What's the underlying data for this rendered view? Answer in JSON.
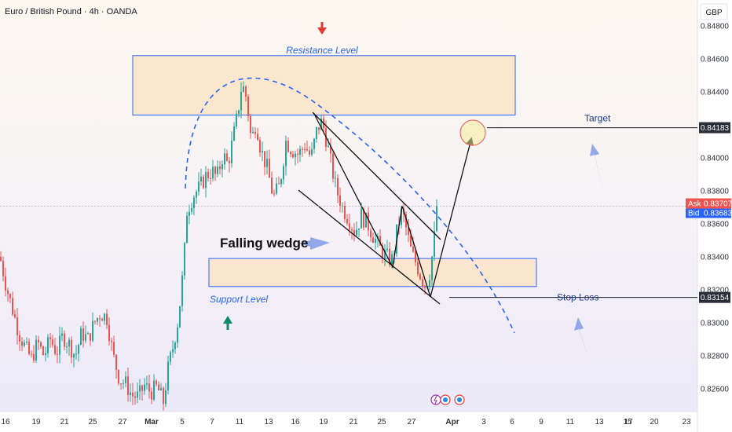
{
  "header": {
    "symbol_title": "Euro / British Pound · 4h · OANDA",
    "currency": "GBP"
  },
  "colors": {
    "up": "#26a69a",
    "down": "#ef5350",
    "zone_fill": "#fbe3c4",
    "zone_border": "#2962ff",
    "dash_curve": "#2962ff",
    "arrow_blue": "#7b96e6",
    "ask": "#ef5350",
    "bid": "#2962ff",
    "price_tag": "#2a2e39"
  },
  "chart_data": {
    "type": "candlestick",
    "title": "Euro / British Pound · 4h · OANDA",
    "ylim": [
      0.825,
      0.849
    ],
    "y_ticks": [
      "0.84800",
      "0.84600",
      "0.84400",
      "0.84200",
      "0.84000",
      "0.83800",
      "0.83600",
      "0.83400",
      "0.83200",
      "0.83000",
      "0.82800",
      "0.82600"
    ],
    "x_ticks": [
      "16",
      "19",
      "21",
      "25",
      "27",
      "Mar",
      "5",
      "7",
      "11",
      "13",
      "16",
      "19",
      "21",
      "25",
      "27",
      "Apr",
      "3",
      "6",
      "9",
      "11",
      "13",
      "15",
      "17",
      "20",
      "23"
    ],
    "x_ticks_bold": [
      "Mar",
      "Apr"
    ],
    "anchors": [
      [
        0,
        0.834
      ],
      [
        8,
        0.8322
      ],
      [
        16,
        0.8308
      ],
      [
        24,
        0.8294
      ],
      [
        32,
        0.8285
      ],
      [
        40,
        0.8278
      ],
      [
        48,
        0.8288
      ],
      [
        56,
        0.828
      ],
      [
        64,
        0.829
      ],
      [
        72,
        0.8282
      ],
      [
        80,
        0.8292
      ],
      [
        88,
        0.8287
      ],
      [
        96,
        0.828
      ],
      [
        104,
        0.8294
      ],
      [
        112,
        0.829
      ],
      [
        120,
        0.83
      ],
      [
        128,
        0.8306
      ],
      [
        136,
        0.8303
      ],
      [
        144,
        0.828
      ],
      [
        152,
        0.8266
      ],
      [
        160,
        0.8263
      ],
      [
        168,
        0.8256
      ],
      [
        176,
        0.8255
      ],
      [
        184,
        0.8262
      ],
      [
        192,
        0.8258
      ],
      [
        200,
        0.8261
      ],
      [
        208,
        0.8252
      ],
      [
        214,
        0.8272
      ],
      [
        220,
        0.8285
      ],
      [
        226,
        0.83
      ],
      [
        230,
        0.8316
      ],
      [
        234,
        0.8336
      ],
      [
        238,
        0.8368
      ],
      [
        246,
        0.8377
      ],
      [
        254,
        0.8382
      ],
      [
        262,
        0.8389
      ],
      [
        270,
        0.8392
      ],
      [
        276,
        0.8388
      ],
      [
        284,
        0.8402
      ],
      [
        290,
        0.8396
      ],
      [
        296,
        0.841
      ],
      [
        302,
        0.8425
      ],
      [
        308,
        0.8445
      ],
      [
        314,
        0.8436
      ],
      [
        320,
        0.841
      ],
      [
        326,
        0.8422
      ],
      [
        332,
        0.8405
      ],
      [
        340,
        0.8394
      ],
      [
        348,
        0.8376
      ],
      [
        356,
        0.8383
      ],
      [
        364,
        0.841
      ],
      [
        372,
        0.8405
      ],
      [
        380,
        0.8402
      ],
      [
        388,
        0.8408
      ],
      [
        396,
        0.84
      ],
      [
        404,
        0.8418
      ],
      [
        410,
        0.8422
      ],
      [
        416,
        0.841
      ],
      [
        422,
        0.8395
      ],
      [
        428,
        0.8381
      ],
      [
        436,
        0.837
      ],
      [
        444,
        0.8363
      ],
      [
        452,
        0.8355
      ],
      [
        460,
        0.8365
      ],
      [
        468,
        0.836
      ],
      [
        476,
        0.8352
      ],
      [
        484,
        0.8345
      ],
      [
        492,
        0.834
      ],
      [
        500,
        0.8338
      ],
      [
        506,
        0.8358
      ],
      [
        512,
        0.8368
      ],
      [
        518,
        0.8355
      ],
      [
        524,
        0.8342
      ],
      [
        530,
        0.8336
      ],
      [
        536,
        0.8328
      ],
      [
        542,
        0.8322
      ],
      [
        548,
        0.8332
      ],
      [
        553,
        0.8352
      ],
      [
        556,
        0.8371
      ]
    ],
    "resistance_zone": {
      "label": "Resistance Level",
      "y_low": 0.8426,
      "y_high": 0.8462
    },
    "support_zone": {
      "label": "Support Level",
      "y_low": 0.8322,
      "y_high": 0.8339
    },
    "price_lines": [
      {
        "label": "Target",
        "price": "0.84183",
        "color": "#131722"
      },
      {
        "label": "Stop Loss",
        "price": "0.83154",
        "color": "#131722"
      }
    ],
    "current_price": {
      "ask_label": "Ask",
      "ask": "0.83707",
      "bid_label": "Bid",
      "bid": "0.83683"
    },
    "annotations": {
      "pattern": "Falling wedge"
    }
  }
}
